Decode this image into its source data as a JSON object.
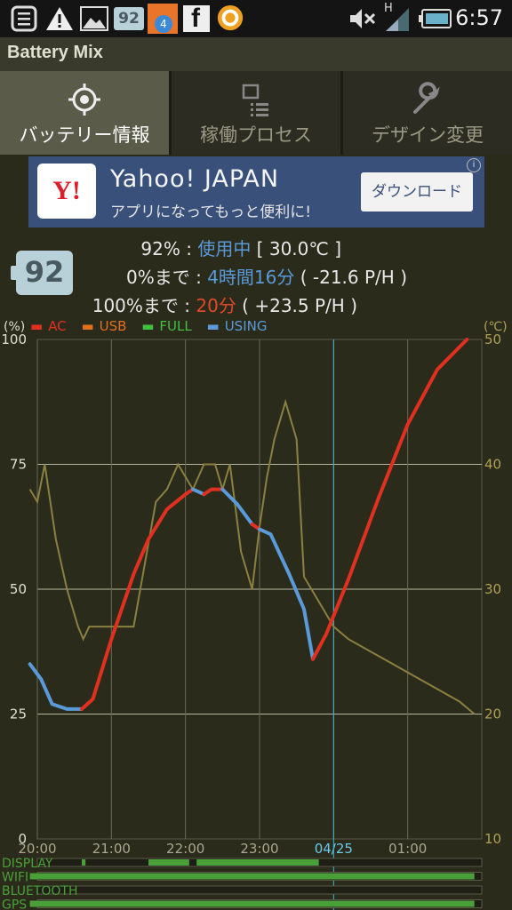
{
  "status_bar": {
    "badge_num": "92",
    "notif_count": "4",
    "time": "6:57",
    "signal_letter": "H",
    "icons": [
      "menu-icon",
      "warning-icon",
      "image-icon",
      "battery-badge-icon",
      "blogger-icon",
      "facebook-icon",
      "app-icon",
      "mute-icon",
      "signal-icon",
      "battery-icon"
    ]
  },
  "app": {
    "title": "Battery Mix"
  },
  "tabs": [
    {
      "label": "バッテリー情報",
      "icon": "crosshair-icon",
      "active": true
    },
    {
      "label": "稼働プロセス",
      "icon": "process-list-icon",
      "active": false
    },
    {
      "label": "デザイン変更",
      "icon": "wrench-icon",
      "active": false
    }
  ],
  "ad": {
    "logo": "Y!",
    "title": "Yahoo! JAPAN",
    "subtitle": "アプリになってもっと便利に!",
    "button": "ダウンロード",
    "info": "i"
  },
  "battery": {
    "level": "92",
    "line1": {
      "label": "92% : ",
      "status": "使用中",
      "temp": " [ 30.0℃ ]"
    },
    "line2": {
      "label": "0%まで : ",
      "time": "4時間16分",
      "rate": " ( -21.6 P/H )"
    },
    "line3": {
      "label": "100%まで : ",
      "time": "20分",
      "rate": " ( +23.5 P/H )"
    }
  },
  "legend": [
    {
      "label": "AC",
      "color": "#e03020"
    },
    {
      "label": "USB",
      "color": "#e07020"
    },
    {
      "label": "FULL",
      "color": "#40c040"
    },
    {
      "label": "USING",
      "color": "#5a9ad8"
    }
  ],
  "chart_data": {
    "type": "line",
    "left_axis_unit": "(%)",
    "right_axis_unit": "(℃)",
    "left_ticks": [
      0,
      25,
      50,
      75,
      100
    ],
    "right_ticks": [
      10,
      20,
      30,
      40,
      50
    ],
    "x_ticks": [
      "20:00",
      "21:00",
      "22:00",
      "23:00",
      "04/25",
      "01:00"
    ],
    "x_hours": [
      0,
      1,
      2,
      3,
      4,
      5
    ],
    "now_hour": 4.0,
    "xlim": [
      0,
      6
    ],
    "ylim": [
      0,
      100
    ],
    "temp_lim": [
      10,
      50
    ],
    "battery_series": [
      {
        "name": "USING",
        "color": "#5a9ad8",
        "x": [
          -0.1,
          0.05,
          0.2,
          0.4,
          0.6
        ],
        "y": [
          35,
          32,
          27,
          26,
          26
        ]
      },
      {
        "name": "AC",
        "color": "#e03020",
        "x": [
          0.6,
          0.75,
          1.0,
          1.3,
          1.5,
          1.75,
          2.0,
          2.1
        ],
        "y": [
          26,
          28,
          40,
          53,
          60,
          66,
          69,
          70
        ]
      },
      {
        "name": "USING",
        "color": "#5a9ad8",
        "x": [
          2.1,
          2.25
        ],
        "y": [
          70,
          69
        ]
      },
      {
        "name": "AC",
        "color": "#e03020",
        "x": [
          2.25,
          2.35,
          2.5
        ],
        "y": [
          69,
          70,
          70
        ]
      },
      {
        "name": "USING",
        "color": "#5a9ad8",
        "x": [
          2.5,
          2.7,
          2.9
        ],
        "y": [
          70,
          67,
          63
        ]
      },
      {
        "name": "AC",
        "color": "#e03020",
        "x": [
          2.9,
          3.0
        ],
        "y": [
          63,
          62
        ]
      },
      {
        "name": "USING",
        "color": "#5a9ad8",
        "x": [
          3.0,
          3.15,
          3.4,
          3.6,
          3.72
        ],
        "y": [
          62,
          61,
          53,
          46,
          36
        ]
      },
      {
        "name": "AC",
        "color": "#e03020",
        "x": [
          3.72,
          3.9,
          4.2,
          4.6,
          5.0,
          5.4,
          5.8
        ],
        "y": [
          36,
          41,
          52,
          68,
          83,
          94,
          100
        ]
      }
    ],
    "temperature": {
      "x": [
        -0.1,
        0.0,
        0.1,
        0.25,
        0.4,
        0.55,
        0.62,
        0.7,
        1.0,
        1.3,
        1.6,
        1.75,
        1.9,
        2.1,
        2.25,
        2.4,
        2.5,
        2.6,
        2.75,
        2.9,
        3.0,
        3.1,
        3.2,
        3.35,
        3.5,
        3.6,
        3.7,
        3.8,
        4.0,
        4.2,
        4.5,
        4.8,
        5.1,
        5.4,
        5.7,
        5.9
      ],
      "y": [
        38,
        37,
        40,
        34,
        30,
        27,
        26,
        27,
        27,
        27,
        37,
        38,
        40,
        38,
        40,
        40,
        38,
        40,
        33,
        30,
        35,
        39,
        42,
        45,
        42,
        31,
        30,
        29,
        27,
        26,
        25,
        24,
        23,
        22,
        21,
        20
      ]
    },
    "activity_rows": [
      {
        "label": "DISPLAY",
        "segments": [
          [
            0.6,
            0.65
          ],
          [
            1.5,
            2.05
          ],
          [
            2.15,
            3.8
          ]
        ]
      },
      {
        "label": "WIFI",
        "segments": [
          [
            -0.1,
            5.9
          ]
        ]
      },
      {
        "label": "BLUETOOTH",
        "segments": []
      },
      {
        "label": "GPS",
        "segments": [
          [
            -0.1,
            5.9
          ]
        ]
      }
    ]
  }
}
